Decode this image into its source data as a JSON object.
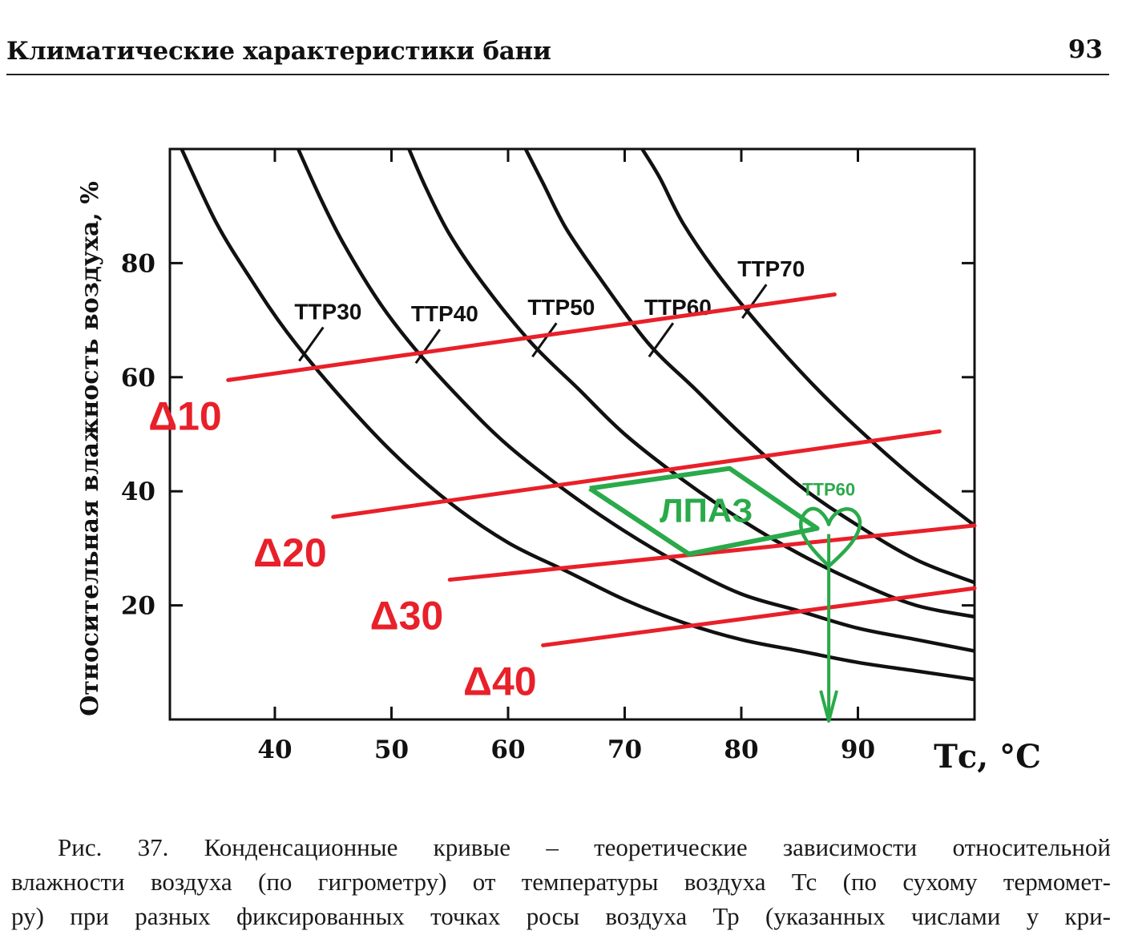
{
  "header": {
    "title": "Климатические характеристики бани",
    "page_number": "93"
  },
  "chart_data": {
    "type": "line",
    "title": "",
    "xlabel": "Тс, °С",
    "ylabel": "Относительная влажность воздуха, %",
    "xlim": [
      31,
      100
    ],
    "ylim": [
      0,
      100
    ],
    "x_ticks": [
      40,
      50,
      60,
      70,
      80,
      90
    ],
    "y_ticks": [
      20,
      40,
      60,
      80
    ],
    "grid": false,
    "colors": {
      "curve": "#111111",
      "delta": "#e8202a",
      "zone": "#2aaa4a"
    },
    "curve_labels": [
      "ТТР30",
      "ТТР40",
      "ТТР50",
      "ТТР60",
      "ТТР70"
    ],
    "condensation_curves": [
      {
        "name": "ТТР30",
        "points": [
          [
            32,
            100
          ],
          [
            35,
            87
          ],
          [
            38,
            77
          ],
          [
            41,
            68
          ],
          [
            45,
            58
          ],
          [
            50,
            47
          ],
          [
            55,
            38
          ],
          [
            60,
            31
          ],
          [
            65,
            26
          ],
          [
            70,
            21
          ],
          [
            75,
            17
          ],
          [
            80,
            14
          ],
          [
            85,
            12
          ],
          [
            90,
            10
          ],
          [
            95,
            8.5
          ],
          [
            100,
            7
          ]
        ]
      },
      {
        "name": "ТТР40",
        "points": [
          [
            42,
            100
          ],
          [
            44,
            91
          ],
          [
            46,
            83
          ],
          [
            49,
            73
          ],
          [
            52,
            65
          ],
          [
            56,
            56
          ],
          [
            60,
            48
          ],
          [
            65,
            40
          ],
          [
            70,
            33
          ],
          [
            75,
            27
          ],
          [
            80,
            22
          ],
          [
            85,
            19
          ],
          [
            90,
            16
          ],
          [
            95,
            14
          ],
          [
            100,
            12
          ]
        ]
      },
      {
        "name": "ТТР50",
        "points": [
          [
            51.5,
            100
          ],
          [
            53,
            93
          ],
          [
            55,
            85
          ],
          [
            58,
            76
          ],
          [
            62,
            66
          ],
          [
            66,
            58
          ],
          [
            70,
            50
          ],
          [
            75,
            42
          ],
          [
            80,
            35
          ],
          [
            85,
            29
          ],
          [
            90,
            24
          ],
          [
            95,
            20
          ],
          [
            100,
            18
          ]
        ]
      },
      {
        "name": "ТТР60",
        "points": [
          [
            61.5,
            100
          ],
          [
            63,
            94
          ],
          [
            65,
            86
          ],
          [
            68,
            77
          ],
          [
            72,
            66
          ],
          [
            76,
            58
          ],
          [
            80,
            50
          ],
          [
            85,
            41
          ],
          [
            90,
            34
          ],
          [
            95,
            28
          ],
          [
            100,
            24
          ]
        ]
      },
      {
        "name": "ТТР70",
        "points": [
          [
            71.5,
            100
          ],
          [
            73,
            95
          ],
          [
            75,
            87
          ],
          [
            78,
            78
          ],
          [
            82,
            68
          ],
          [
            86,
            59
          ],
          [
            90,
            51
          ],
          [
            95,
            42
          ],
          [
            100,
            34
          ]
        ]
      }
    ],
    "delta_lines": [
      {
        "name": "Δ10",
        "points": [
          [
            36,
            59.5
          ],
          [
            88,
            74.5
          ]
        ]
      },
      {
        "name": "Δ20",
        "points": [
          [
            45,
            35.5
          ],
          [
            97,
            50.5
          ]
        ]
      },
      {
        "name": "Δ30",
        "points": [
          [
            55,
            24.5
          ],
          [
            100,
            34
          ]
        ]
      },
      {
        "name": "Δ40",
        "points": [
          [
            63,
            13
          ],
          [
            100,
            23
          ]
        ]
      }
    ],
    "zone": {
      "label": "ЛПАЗ",
      "points": [
        [
          67,
          40.5
        ],
        [
          79,
          44
        ],
        [
          86.5,
          33.5
        ],
        [
          75.5,
          29
        ],
        [
          67,
          40.5
        ]
      ]
    },
    "marker": {
      "label": "ТТР60",
      "point": [
        87.5,
        32.5
      ],
      "arrow_to": [
        87.5,
        0
      ]
    }
  },
  "caption": {
    "lines": [
      "Рис. 37. Конденсационные кривые – теоретические зависимости относительной",
      "влажности воздуха (по гигрометру) от температуры воздуха Тс (по сухому термомет-",
      "ру) при разных фиксированных точках росы воздуха Тр (указанных числами у кри-"
    ]
  }
}
